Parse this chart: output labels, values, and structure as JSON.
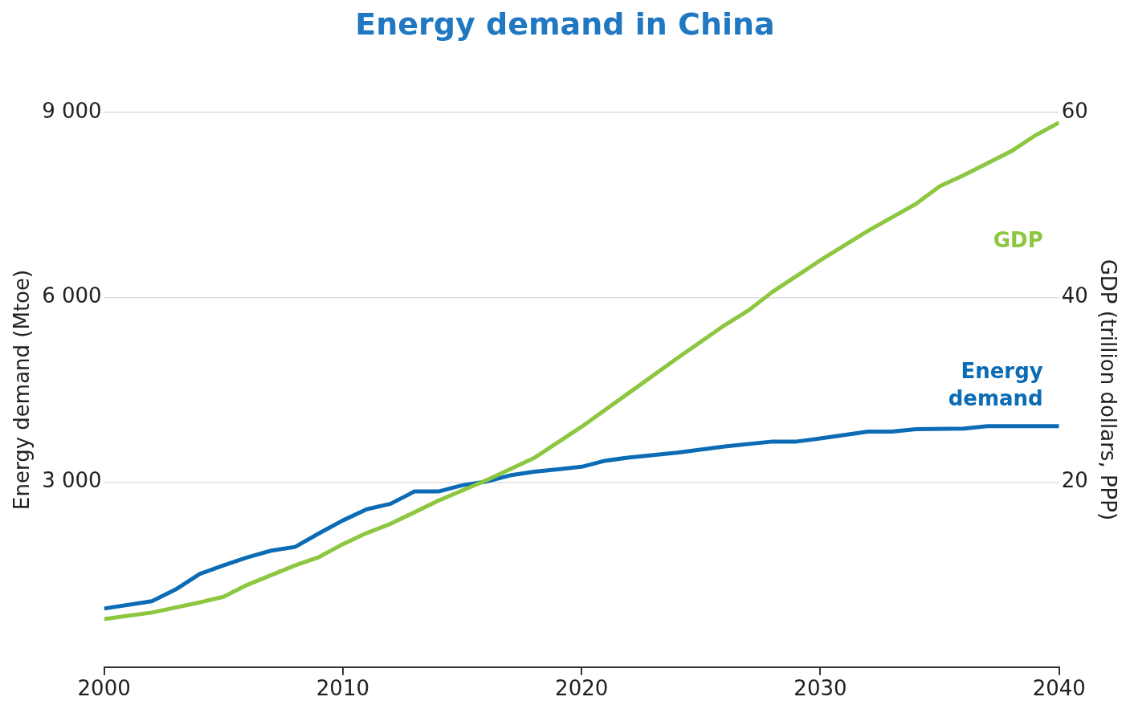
{
  "chart_data": {
    "type": "line",
    "title": "Energy demand in China",
    "ylabel": "Energy demand (Mtoe)",
    "y2label": "GDP (trillion dollars, PPP)",
    "xlim": [
      2000,
      2040
    ],
    "xticks": [
      2000,
      2010,
      2020,
      2030,
      2040
    ],
    "ylim": [
      0,
      9000
    ],
    "yticks": [
      {
        "value": 3000,
        "label": "3 000"
      },
      {
        "value": 6000,
        "label": "6 000"
      },
      {
        "value": 9000,
        "label": "9 000"
      }
    ],
    "y2lim": [
      0,
      60
    ],
    "y2ticks": [
      20,
      40,
      60
    ],
    "grid": "y",
    "legend": false,
    "marker": "none",
    "line_style": "solid",
    "series": [
      {
        "name": "GDP",
        "color": "#8dc63f",
        "axis": "y2",
        "x": [
          2000,
          2002,
          2004,
          2005,
          2006,
          2008,
          2009,
          2010,
          2011,
          2012,
          2014,
          2016,
          2018,
          2020,
          2022,
          2024,
          2026,
          2027,
          2028,
          2030,
          2032,
          2034,
          2035,
          2036,
          2038,
          2039,
          2040
        ],
        "values": [
          5.2,
          5.9,
          7.0,
          7.6,
          8.9,
          11.0,
          11.9,
          13.3,
          14.5,
          15.5,
          18.0,
          20.2,
          22.6,
          26.0,
          29.7,
          33.4,
          37.0,
          38.6,
          40.6,
          44.0,
          47.2,
          50.1,
          52.0,
          53.2,
          55.8,
          57.5,
          58.9
        ]
      },
      {
        "name": "Energy demand",
        "color": "#0b6bb5",
        "x": [
          2000,
          2002,
          2003,
          2004,
          2005,
          2006,
          2007,
          2008,
          2009,
          2010,
          2011,
          2012,
          2013,
          2014,
          2015,
          2016,
          2017,
          2018,
          2019,
          2020,
          2021,
          2022,
          2024,
          2026,
          2028,
          2029,
          2030,
          2032,
          2033,
          2034,
          2036,
          2037,
          2040
        ],
        "values": [
          950,
          1070,
          1260,
          1510,
          1650,
          1780,
          1890,
          1950,
          2170,
          2380,
          2560,
          2650,
          2850,
          2850,
          2950,
          3010,
          3110,
          3170,
          3210,
          3250,
          3350,
          3400,
          3480,
          3580,
          3660,
          3660,
          3710,
          3820,
          3820,
          3860,
          3870,
          3910,
          3910
        ]
      }
    ]
  }
}
